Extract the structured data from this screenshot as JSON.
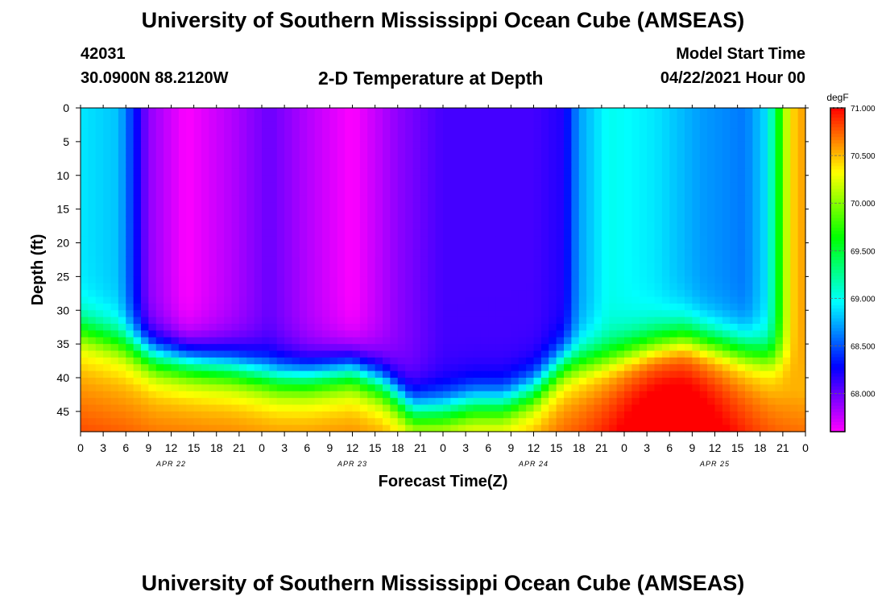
{
  "header": {
    "title": "University of Southern Mississippi Ocean Cube (AMSEAS)",
    "station_id": "42031",
    "station_location": "30.0900N  88.2120W",
    "plot_title": "2-D Temperature at Depth",
    "start_label": "Model Start Time",
    "start_value": "04/22/2021 Hour 00"
  },
  "footer": {
    "title": "University of Southern Mississippi Ocean Cube (AMSEAS)"
  },
  "chart_data": {
    "type": "heatmap",
    "xlabel": "Forecast Time(Z)",
    "ylabel": "Depth (ft)",
    "colorbar_label": "degF",
    "x_tick_labels": [
      "0",
      "3",
      "6",
      "9",
      "12",
      "15",
      "18",
      "21",
      "0",
      "3",
      "6",
      "9",
      "12",
      "15",
      "18",
      "21",
      "0",
      "3",
      "6",
      "9",
      "12",
      "15",
      "18",
      "21",
      "0",
      "3",
      "6",
      "9",
      "12",
      "15",
      "18",
      "21",
      "0"
    ],
    "date_labels": [
      {
        "label": "APR 22",
        "hour": 12
      },
      {
        "label": "APR 23",
        "hour": 36
      },
      {
        "label": "APR 24",
        "hour": 60
      },
      {
        "label": "APR 25",
        "hour": 84
      }
    ],
    "xlim": [
      0,
      96
    ],
    "ylim": [
      0,
      48
    ],
    "y_ticks": [
      0,
      5,
      10,
      15,
      20,
      25,
      30,
      35,
      40,
      45
    ],
    "colorbar_range": [
      67.6,
      71.0
    ],
    "colorbar_ticks": [
      "71.000",
      "70.500",
      "70.000",
      "69.500",
      "69.000",
      "68.500",
      "68.000"
    ],
    "colorbar_tick_values": [
      71.0,
      70.5,
      70.0,
      69.5,
      69.0,
      68.5,
      68.0
    ],
    "field": {
      "surface_hours": [
        0,
        5,
        6,
        9,
        14,
        20,
        25,
        30,
        36,
        42,
        48,
        54,
        60,
        64,
        66,
        70,
        76,
        82,
        88,
        91,
        94,
        96
      ],
      "surface_temp_degF": [
        68.9,
        68.8,
        68.6,
        67.9,
        67.6,
        67.8,
        68.0,
        67.8,
        67.6,
        67.9,
        68.1,
        68.1,
        68.1,
        68.2,
        68.7,
        69.0,
        68.9,
        68.7,
        68.6,
        68.9,
        70.4,
        70.6
      ],
      "thermocline_hours": [
        0,
        6,
        10,
        16,
        20,
        26,
        30,
        36,
        40,
        44,
        48,
        52,
        56,
        60,
        64,
        70,
        76,
        80,
        84,
        88,
        92,
        96
      ],
      "thermocline_depth_ft": [
        33,
        35,
        37,
        38,
        38.5,
        40,
        40,
        39,
        41,
        45,
        45,
        44,
        44,
        42,
        38,
        37,
        35,
        34,
        35,
        36,
        37,
        37
      ],
      "bottom_temp_degF": 70.5,
      "bottom_temp_peak_degF": 71.0,
      "bottom_peak_hour": 78
    }
  }
}
